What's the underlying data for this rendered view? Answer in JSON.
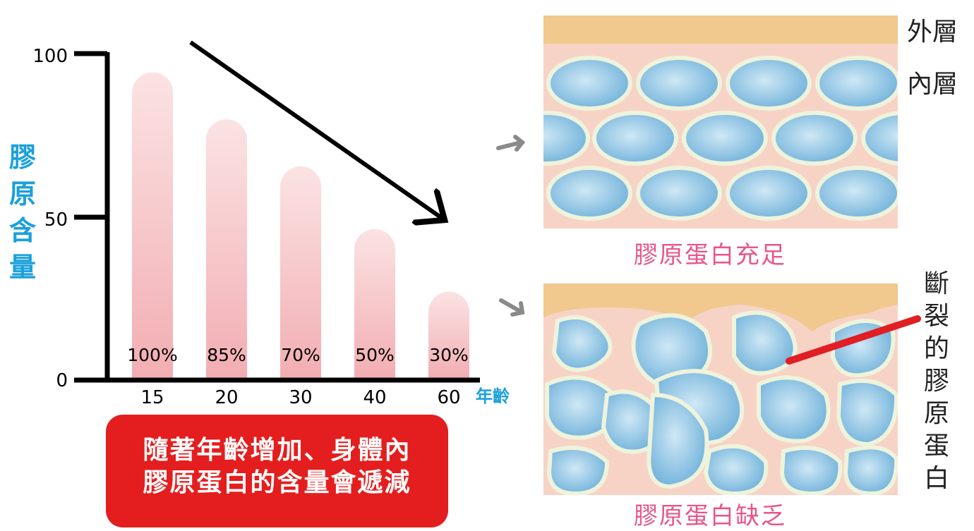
{
  "chart_data": {
    "type": "bar",
    "categories": [
      "15",
      "20",
      "30",
      "40",
      "60"
    ],
    "values": [
      100,
      85,
      70,
      50,
      30
    ],
    "value_labels": [
      "100%",
      "85%",
      "70%",
      "50%",
      "30%"
    ],
    "yticks": [
      "100",
      "50",
      "0"
    ],
    "ylabel": "膠原含量",
    "xlabel": "年齡",
    "ylim": [
      0,
      100
    ],
    "colors": {
      "bar_top": "#fbe1e1",
      "bar_bottom": "#f2aeb3",
      "axis": "#000000",
      "label": "#1aa0dc"
    }
  },
  "caption": {
    "line1": "隨著年齡增加、身體內",
    "line2": "膠原蛋白的含量會遞減"
  },
  "skin_panels": {
    "outer_layer_label": "外層",
    "inner_layer_label": "內層",
    "healthy_caption": "膠原蛋白充足",
    "damaged_caption": "膠原蛋白缺乏",
    "broken_label": "斷裂的膠原蛋白",
    "colors": {
      "epidermis": "#f1c88e",
      "dermis": "#f7d4c8",
      "cell": "#79b9dd",
      "cell_edge": "#eef3dc",
      "pointer": "#e01e24"
    }
  }
}
